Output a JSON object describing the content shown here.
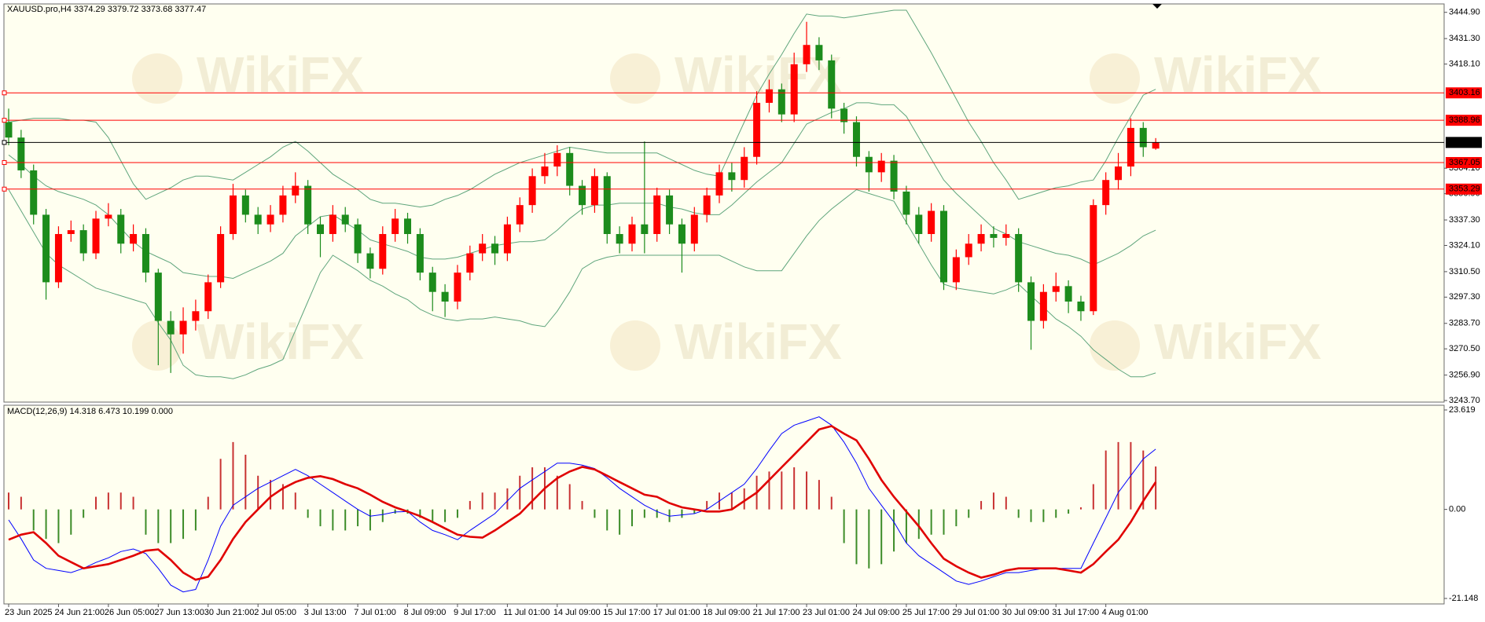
{
  "chart_data": [
    {
      "type": "candlestick",
      "title": "XAUUSD.pro,H4  3374.29 3379.72 3373.68 3377.47",
      "watermark": "WikiFX",
      "categories": [
        "23 Jun 2025",
        null,
        null,
        null,
        "24 Jun 21:00",
        null,
        null,
        null,
        "26 Jun 05:00",
        null,
        null,
        null,
        "27 Jun 13:00",
        null,
        null,
        null,
        "30 Jun 21:00",
        null,
        null,
        null,
        "2 Jul 05:00",
        null,
        null,
        null,
        "3 Jul 13:00",
        null,
        null,
        null,
        "7 Jul 01:00",
        null,
        null,
        null,
        "8 Jul 09:00",
        null,
        null,
        null,
        "9 Jul 17:00",
        null,
        null,
        null,
        "11 Jul 01:00",
        null,
        null,
        null,
        "14 Jul 09:00",
        null,
        null,
        null,
        "15 Jul 17:00",
        null,
        null,
        null,
        "17 Jul 01:00",
        null,
        null,
        null,
        "18 Jul 09:00",
        null,
        null,
        null,
        "21 Jul 17:00",
        null,
        null,
        null,
        "23 Jul 01:00",
        null,
        null,
        null,
        "24 Jul 09:00",
        null,
        null,
        null,
        "25 Jul 17:00",
        null,
        null,
        null,
        "29 Jul 01:00",
        null,
        null,
        null,
        "30 Jul 09:00",
        null,
        null,
        null,
        "31 Jul 17:00",
        null,
        null,
        null,
        "4 Aug 01:00",
        null,
        null,
        null,
        null
      ],
      "open": [
        3388,
        3380,
        3363,
        3340,
        3305,
        3330,
        3332,
        3320,
        3338,
        3340,
        3325,
        3330,
        3310,
        3285,
        3278,
        3285,
        3290,
        3305,
        3330,
        3350,
        3340,
        3335,
        3340,
        3350,
        3355,
        3335,
        3330,
        3340,
        3335,
        3320,
        3312,
        3330,
        3338,
        3330,
        3310,
        3300,
        3295,
        3310,
        3320,
        3325,
        3320,
        3335,
        3345,
        3360,
        3365,
        3372,
        3355,
        3345,
        3360,
        3330,
        3325,
        3335,
        3330,
        3350,
        3335,
        3325,
        3340,
        3350,
        3362,
        3358,
        3370,
        3398,
        3405,
        3392,
        3418,
        3428,
        3420,
        3395,
        3388,
        3370,
        3362,
        3368,
        3352,
        3340,
        3330,
        3342,
        3305,
        3318,
        3325,
        3330,
        3328,
        3330,
        3305,
        3285,
        3300,
        3303,
        3295,
        3290,
        3345,
        3358,
        3365,
        3385,
        3374.29
      ],
      "high": [
        3395,
        3384,
        3366,
        3343,
        3334,
        3337,
        3335,
        3342,
        3346,
        3343,
        3335,
        3333,
        3312,
        3290,
        3292,
        3296,
        3309,
        3334,
        3356,
        3353,
        3344,
        3345,
        3355,
        3362,
        3358,
        3339,
        3345,
        3344,
        3338,
        3323,
        3334,
        3343,
        3341,
        3333,
        3313,
        3304,
        3314,
        3324,
        3330,
        3329,
        3339,
        3349,
        3364,
        3372,
        3376,
        3375,
        3358,
        3364,
        3362,
        3334,
        3339,
        3378,
        3354,
        3353,
        3338,
        3344,
        3354,
        3366,
        3367,
        3375,
        3404,
        3410,
        3408,
        3424,
        3440,
        3432,
        3423,
        3398,
        3391,
        3373,
        3372,
        3371,
        3355,
        3344,
        3346,
        3345,
        3322,
        3330,
        3335,
        3334,
        3335,
        3333,
        3308,
        3304,
        3310,
        3306,
        3298,
        3348,
        3362,
        3372,
        3390,
        3388,
        3379.72
      ],
      "low": [
        3376,
        3359,
        3335,
        3296,
        3302,
        3326,
        3316,
        3317,
        3334,
        3320,
        3321,
        3305,
        3262,
        3258,
        3268,
        3280,
        3286,
        3302,
        3327,
        3336,
        3330,
        3331,
        3336,
        3346,
        3330,
        3318,
        3326,
        3331,
        3315,
        3307,
        3309,
        3326,
        3325,
        3306,
        3290,
        3287,
        3291,
        3306,
        3316,
        3314,
        3316,
        3331,
        3341,
        3356,
        3360,
        3350,
        3340,
        3341,
        3325,
        3320,
        3321,
        3320,
        3326,
        3330,
        3310,
        3321,
        3336,
        3346,
        3352,
        3354,
        3366,
        3393,
        3388,
        3388,
        3414,
        3415,
        3390,
        3382,
        3365,
        3352,
        3357,
        3348,
        3335,
        3325,
        3326,
        3301,
        3301,
        3314,
        3321,
        3323,
        3324,
        3300,
        3270,
        3281,
        3295,
        3289,
        3285,
        3288,
        3340,
        3353,
        3360,
        3370,
        3373.68
      ],
      "close": [
        3380,
        3363,
        3340,
        3305,
        3330,
        3332,
        3320,
        3338,
        3340,
        3325,
        3330,
        3310,
        3285,
        3278,
        3285,
        3290,
        3305,
        3330,
        3350,
        3340,
        3335,
        3340,
        3350,
        3355,
        3335,
        3330,
        3340,
        3335,
        3320,
        3312,
        3330,
        3338,
        3330,
        3310,
        3300,
        3295,
        3310,
        3320,
        3325,
        3320,
        3335,
        3345,
        3360,
        3365,
        3372,
        3355,
        3345,
        3360,
        3330,
        3325,
        3335,
        3330,
        3350,
        3335,
        3325,
        3340,
        3350,
        3362,
        3358,
        3370,
        3398,
        3405,
        3392,
        3418,
        3428,
        3420,
        3395,
        3388,
        3370,
        3362,
        3368,
        3352,
        3340,
        3330,
        3342,
        3305,
        3318,
        3325,
        3330,
        3328,
        3330,
        3305,
        3285,
        3300,
        3303,
        3295,
        3290,
        3345,
        3358,
        3365,
        3385,
        3375,
        3377.47
      ],
      "up_color": "#ff0000",
      "down_color": "#1c8c1c",
      "bands": [
        {
          "color": "#5fa57c",
          "values": [
            3388,
            3389,
            3390,
            3390,
            3390,
            3389,
            3389,
            3388,
            3380,
            3368,
            3356,
            3348,
            3351,
            3354,
            3358,
            3360,
            3360,
            3359,
            3358,
            3362,
            3366,
            3370,
            3375,
            3378,
            3373,
            3367,
            3361,
            3357,
            3353,
            3348,
            3346,
            3346,
            3345,
            3344,
            3345,
            3348,
            3350,
            3353,
            3357,
            3361,
            3364,
            3367,
            3369,
            3371,
            3373,
            3375,
            3374,
            3373,
            3372,
            3372,
            3372,
            3372,
            3372,
            3369,
            3366,
            3363,
            3361,
            3360,
            3374,
            3388,
            3402,
            3413,
            3423,
            3434,
            3444,
            3443,
            3443,
            3442,
            3443,
            3444,
            3445,
            3446,
            3446,
            3435,
            3424,
            3412,
            3400,
            3388,
            3378,
            3367,
            3358,
            3348,
            3350,
            3352,
            3354,
            3355,
            3357,
            3358,
            3368,
            3380,
            3391,
            3402,
            3405
          ]
        },
        {
          "color": "#5fa57c",
          "values": [
            3371,
            3366,
            3360,
            3355,
            3352,
            3350,
            3348,
            3345,
            3340,
            3333,
            3326,
            3321,
            3318,
            3315,
            3310,
            3309,
            3308,
            3308,
            3307,
            3310,
            3313,
            3316,
            3320,
            3329,
            3334,
            3339,
            3340,
            3336,
            3332,
            3327,
            3325,
            3323,
            3321,
            3318,
            3317,
            3317,
            3318,
            3320,
            3322,
            3324,
            3325,
            3326,
            3326,
            3327,
            3332,
            3338,
            3343,
            3345,
            3345,
            3346,
            3346,
            3346,
            3346,
            3344,
            3343,
            3341,
            3340,
            3340,
            3345,
            3351,
            3357,
            3362,
            3367,
            3377,
            3387,
            3390,
            3393,
            3395,
            3398,
            3398,
            3397,
            3397,
            3391,
            3380,
            3369,
            3358,
            3351,
            3345,
            3339,
            3333,
            3330,
            3326,
            3324,
            3322,
            3320,
            3319,
            3317,
            3314,
            3317,
            3320,
            3324,
            3329,
            3332
          ]
        },
        {
          "color": "#5fa57c",
          "values": [
            3353,
            3342,
            3331,
            3320,
            3314,
            3310,
            3306,
            3302,
            3300,
            3298,
            3296,
            3294,
            3284,
            3275,
            3262,
            3257,
            3256,
            3256,
            3255,
            3257,
            3260,
            3262,
            3265,
            3280,
            3295,
            3310,
            3319,
            3315,
            3311,
            3306,
            3303,
            3299,
            3296,
            3291,
            3288,
            3286,
            3285,
            3286,
            3286,
            3287,
            3286,
            3285,
            3283,
            3282,
            3290,
            3300,
            3312,
            3316,
            3318,
            3319,
            3319,
            3319,
            3319,
            3319,
            3319,
            3319,
            3319,
            3319,
            3316,
            3313,
            3311,
            3311,
            3311,
            3320,
            3329,
            3337,
            3343,
            3348,
            3353,
            3351,
            3349,
            3347,
            3336,
            3325,
            3314,
            3304,
            3302,
            3301,
            3300,
            3299,
            3301,
            3304,
            3298,
            3292,
            3286,
            3282,
            3277,
            3270,
            3265,
            3260,
            3256,
            3256,
            3258
          ]
        }
      ],
      "levels": [
        {
          "value": 3403.16,
          "color": "#ff0000"
        },
        {
          "value": 3388.96,
          "color": "#ff0000"
        },
        {
          "value": 3377.47,
          "color": "#000000"
        },
        {
          "value": 3367.05,
          "color": "#ff0000"
        },
        {
          "value": 3353.29,
          "color": "#ff0000"
        }
      ],
      "ylim": [
        3242.89,
        3449.26
      ],
      "yticks": [
        {
          "value": 3444.9,
          "label": "3444.90"
        },
        {
          "value": 3431.3,
          "label": "3431.30"
        },
        {
          "value": 3418.1,
          "label": "3418.10"
        },
        {
          "value": 3364.1,
          "label": "3364.10"
        },
        {
          "value": 3350.9,
          "label": "3350.90"
        },
        {
          "value": 3337.3,
          "label": "3337.30"
        },
        {
          "value": 3324.1,
          "label": "3324.10"
        },
        {
          "value": 3310.5,
          "label": "3310.50"
        },
        {
          "value": 3297.3,
          "label": "3297.30"
        },
        {
          "value": 3283.7,
          "label": "3283.70"
        },
        {
          "value": 3270.5,
          "label": "3270.50"
        },
        {
          "value": 3256.9,
          "label": "3256.90"
        },
        {
          "value": 3243.7,
          "label": "3243.70"
        }
      ]
    },
    {
      "type": "macd",
      "title": "MACD(12,26,9) 14.318 6.473 10.199 0.000",
      "histogram": {
        "up_color": "#c83232",
        "down_color": "#3c8c28",
        "values": [
          4,
          3,
          -5,
          -7,
          -8,
          -6,
          -2,
          3,
          4,
          4,
          3,
          -6,
          -8,
          -8,
          -7,
          -5,
          3,
          12,
          16,
          13,
          8,
          7,
          6,
          4,
          -2,
          -4,
          -5,
          -5,
          -4,
          -5,
          -3,
          -1,
          -1,
          -2,
          -3,
          -3,
          -2,
          2,
          4,
          4,
          5,
          8,
          10,
          10,
          8,
          6,
          2,
          -2,
          -5,
          -6,
          -4,
          -2,
          -2,
          -3,
          -2,
          -1,
          2,
          4,
          4,
          5,
          8,
          9,
          9,
          10,
          9,
          7,
          3,
          -8,
          -13,
          -14,
          -13,
          -10,
          -8,
          -7,
          -6,
          -6,
          -4,
          -2,
          2,
          4,
          3,
          -2,
          -3,
          -3,
          -2,
          -1,
          0.5,
          6,
          14,
          16,
          16,
          14,
          10.199
        ]
      },
      "series": [
        {
          "color": "#0000ff",
          "width": 1,
          "values": [
            -2.5,
            -7,
            -12,
            -14,
            -14.5,
            -15,
            -14,
            -12.6,
            -11.5,
            -10,
            -9.4,
            -10.5,
            -14,
            -18,
            -19.6,
            -19,
            -12,
            -4,
            1,
            3,
            5,
            6.5,
            8,
            9.5,
            8,
            6,
            4,
            2,
            0,
            -1.6,
            -1.2,
            -0.6,
            -0.5,
            -3,
            -5,
            -6,
            -7.2,
            -5,
            -3,
            -1,
            2,
            5,
            7,
            9,
            11,
            11,
            10.5,
            9.7,
            7.5,
            5,
            3,
            1,
            -0.5,
            -1.6,
            -1.3,
            -1,
            0,
            2,
            4,
            6,
            9.7,
            14,
            18,
            20,
            21,
            22,
            20,
            16,
            11,
            5,
            1,
            -3,
            -8,
            -11,
            -13,
            -15,
            -17,
            -17.8,
            -17,
            -16,
            -15,
            -15,
            -14.5,
            -14,
            -14,
            -14,
            -14,
            -8,
            -2,
            4,
            8,
            12,
            14.318
          ]
        },
        {
          "color": "#e00000",
          "width": 2.6,
          "values": [
            -7.2,
            -6,
            -5.4,
            -8,
            -11,
            -12.5,
            -14,
            -13.5,
            -13,
            -12,
            -11,
            -9.8,
            -9.5,
            -12,
            -15,
            -16.7,
            -16,
            -12,
            -7,
            -3,
            0,
            3,
            5,
            6.5,
            7.5,
            7.9,
            7.2,
            6,
            5,
            3.5,
            1.8,
            0.5,
            -0.5,
            -1.6,
            -3,
            -4.5,
            -6,
            -6.5,
            -6.7,
            -5,
            -3,
            -1,
            2,
            5,
            7.4,
            9,
            10.1,
            9.5,
            8,
            6.5,
            5,
            3.5,
            3,
            1.5,
            0.5,
            0,
            -0.5,
            -0.5,
            0,
            2,
            4,
            7,
            10,
            13,
            16,
            19,
            19.8,
            18,
            16.4,
            12,
            7,
            3,
            -0.5,
            -4,
            -8,
            -11.7,
            -13.5,
            -15,
            -16.2,
            -15.5,
            -14.5,
            -14,
            -14,
            -14,
            -14,
            -14.5,
            -15,
            -13,
            -10,
            -7.2,
            -3,
            2,
            6.473
          ]
        }
      ],
      "ylim": [
        -22.45,
        24.74
      ],
      "yticks": [
        23.619,
        {
          "value": 0,
          "label": "0.00"
        },
        -21.148
      ]
    }
  ]
}
